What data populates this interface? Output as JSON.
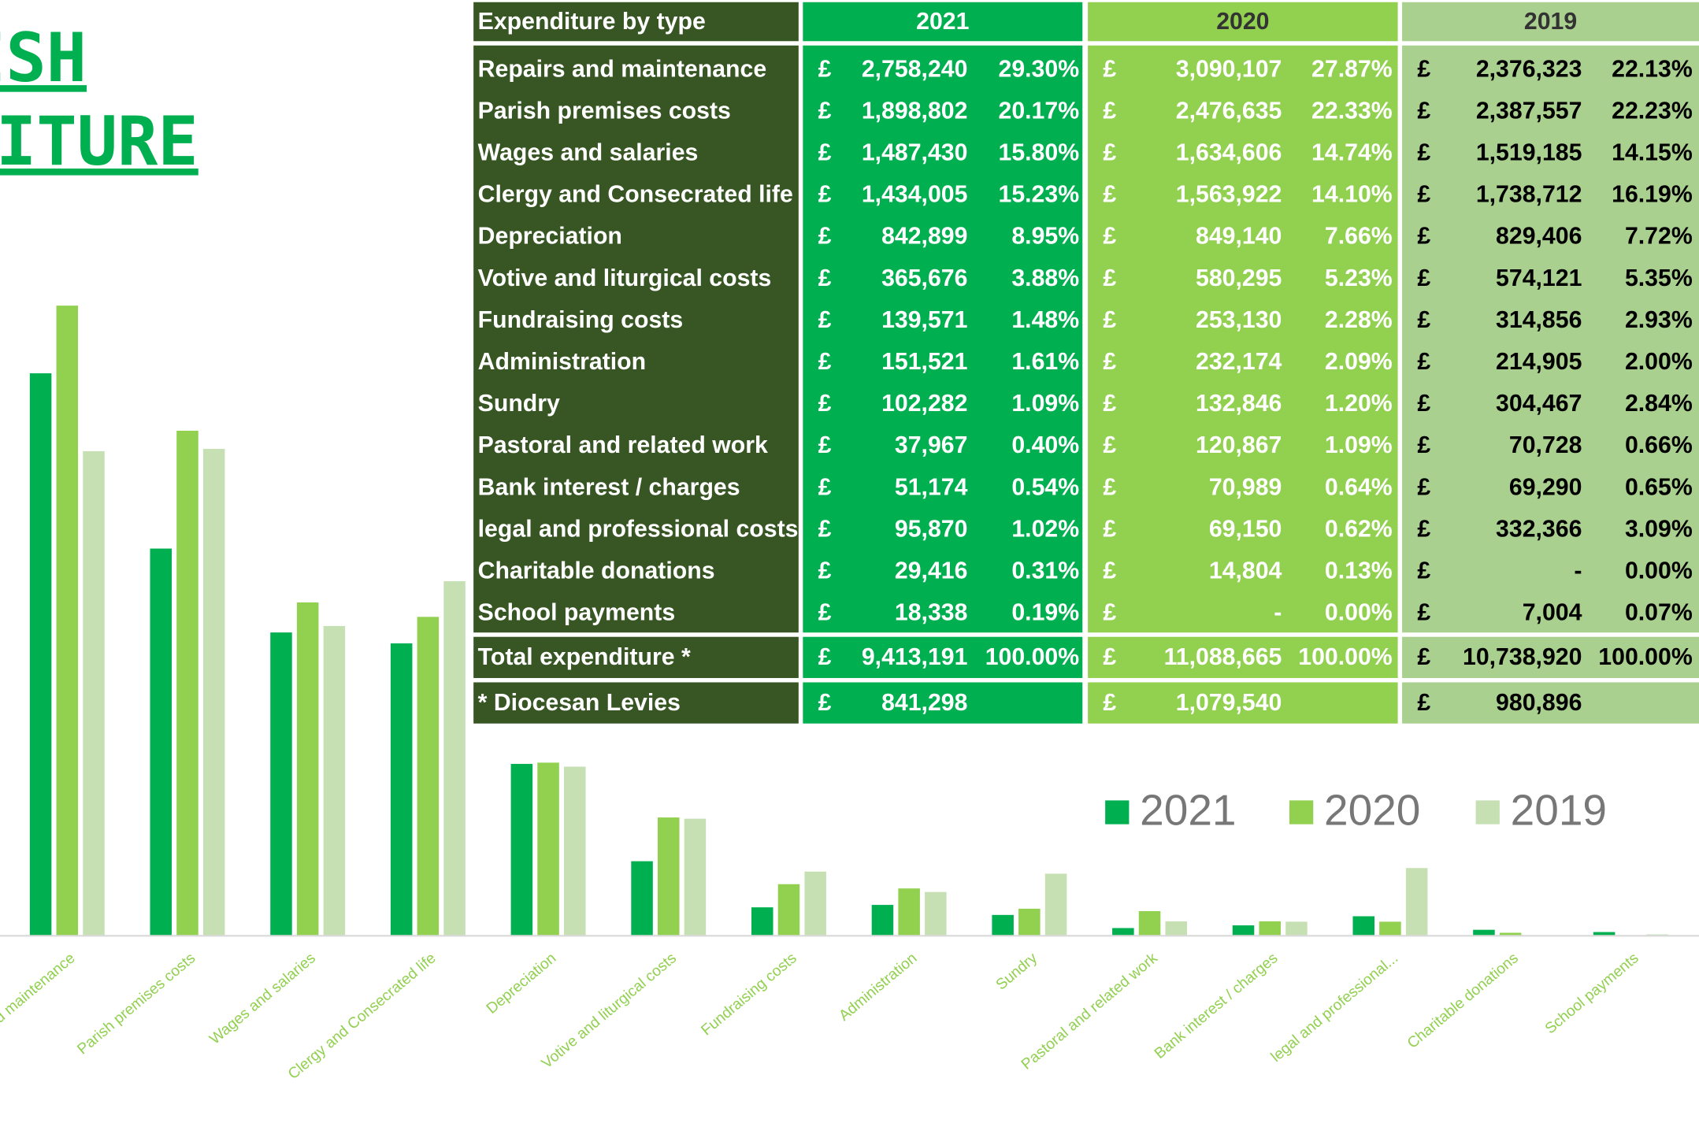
{
  "title": [
    "PARISH",
    "EXPENDITURE"
  ],
  "chart_data": {
    "type": "bar",
    "categories": [
      "Repairs and maintenance",
      "Parish premises costs",
      "Wages and salaries",
      "Clergy and Consecrated life",
      "Depreciation",
      "Votive and liturgical costs",
      "Fundraising costs",
      "Administration",
      "Sundry",
      "Pastoral and related work",
      "Bank interest / charges",
      "legal and professional...",
      "Charitable donations",
      "School payments"
    ],
    "series": [
      {
        "name": "2021",
        "color": "#00b050",
        "values": [
          2758240,
          1898802,
          1487430,
          1434005,
          842899,
          365676,
          139571,
          151521,
          102282,
          37967,
          51174,
          95870,
          29416,
          18338
        ]
      },
      {
        "name": "2020",
        "color": "#92d050",
        "values": [
          3090107,
          2476635,
          1634606,
          1563922,
          849140,
          580295,
          253130,
          232174,
          132846,
          120867,
          70989,
          69150,
          14804,
          0
        ]
      },
      {
        "name": "2019",
        "color": "#c6e0b4",
        "values": [
          2376323,
          2387557,
          1519185,
          1738712,
          829406,
          574121,
          314856,
          214905,
          304467,
          70728,
          69290,
          332366,
          0,
          7004
        ]
      }
    ],
    "ylim": [
      0,
      3500000
    ],
    "legend": "top-right"
  },
  "table": {
    "header": [
      "Expenditure by type",
      "2021",
      "2020",
      "2019"
    ],
    "currency": "£",
    "rows": [
      [
        "Repairs and maintenance",
        "2,758,240",
        "29.30%",
        "3,090,107",
        "27.87%",
        "2,376,323",
        "22.13%"
      ],
      [
        "Parish premises costs",
        "1,898,802",
        "20.17%",
        "2,476,635",
        "22.33%",
        "2,387,557",
        "22.23%"
      ],
      [
        "Wages and salaries",
        "1,487,430",
        "15.80%",
        "1,634,606",
        "14.74%",
        "1,519,185",
        "14.15%"
      ],
      [
        "Clergy and Consecrated life",
        "1,434,005",
        "15.23%",
        "1,563,922",
        "14.10%",
        "1,738,712",
        "16.19%"
      ],
      [
        "Depreciation",
        "842,899",
        "8.95%",
        "849,140",
        "7.66%",
        "829,406",
        "7.72%"
      ],
      [
        "Votive and liturgical costs",
        "365,676",
        "3.88%",
        "580,295",
        "5.23%",
        "574,121",
        "5.35%"
      ],
      [
        "Fundraising costs",
        "139,571",
        "1.48%",
        "253,130",
        "2.28%",
        "314,856",
        "2.93%"
      ],
      [
        "Administration",
        "151,521",
        "1.61%",
        "232,174",
        "2.09%",
        "214,905",
        "2.00%"
      ],
      [
        "Sundry",
        "102,282",
        "1.09%",
        "132,846",
        "1.20%",
        "304,467",
        "2.84%"
      ],
      [
        "Pastoral and related work",
        "37,967",
        "0.40%",
        "120,867",
        "1.09%",
        "70,728",
        "0.66%"
      ],
      [
        "Bank interest / charges",
        "51,174",
        "0.54%",
        "70,989",
        "0.64%",
        "69,290",
        "0.65%"
      ],
      [
        "legal and professional costs",
        "95,870",
        "1.02%",
        "69,150",
        "0.62%",
        "332,366",
        "3.09%"
      ],
      [
        "Charitable donations",
        "29,416",
        "0.31%",
        "14,804",
        "0.13%",
        "-",
        "0.00%"
      ],
      [
        "School payments",
        "18,338",
        "0.19%",
        "-",
        "0.00%",
        "7,004",
        "0.07%"
      ]
    ],
    "total": [
      "Total expenditure *",
      "9,413,191",
      "100.00%",
      "11,088,665",
      "100.00%",
      "10,738,920",
      "100.00%"
    ],
    "levies": [
      "* Diocesan Levies",
      "841,298",
      "1,079,540",
      "980,896"
    ]
  }
}
